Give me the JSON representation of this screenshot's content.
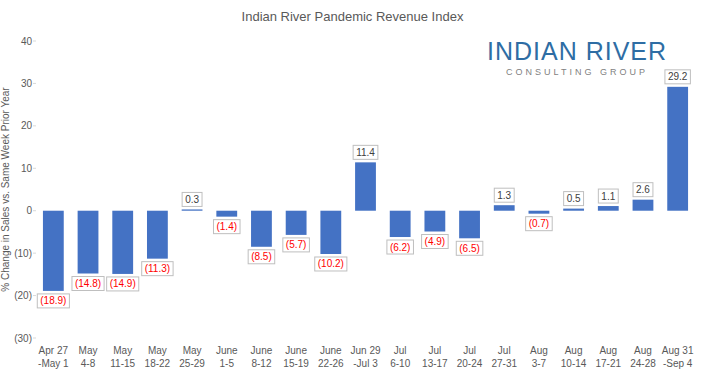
{
  "chart_data": {
    "type": "bar",
    "title": "Indian River Pandemic Revenue Index",
    "y_label": "% Change in Sales vs. Same Week Prior Year",
    "annotations": [
      "INDIAN RIVER",
      "CONSULTING GROUP"
    ],
    "categories": [
      "Apr 27\n-May 1",
      "May\n4-8",
      "May\n11-15",
      "May\n18-22",
      "May\n25-29",
      "June\n1-5",
      "June\n8-12",
      "June\n15-19",
      "June\n22-26",
      "Jun 29\n-Jul 3",
      "Jul\n6-10",
      "Jul\n13-17",
      "Jul\n20-24",
      "Jul\n27-31",
      "Aug\n3-7",
      "Aug\n10-14",
      "Aug\n17-21",
      "Aug\n24-28",
      "Aug 31\n-Sep 4"
    ],
    "values": [
      -18.9,
      -14.8,
      -14.9,
      -11.3,
      0.3,
      -1.4,
      -8.5,
      -5.7,
      -10.2,
      11.4,
      -6.2,
      -4.9,
      -6.5,
      1.3,
      -0.7,
      0.5,
      1.1,
      2.6,
      29.2
    ],
    "value_labels": [
      "(18.9)",
      "(14.8)",
      "(14.9)",
      "(11.3)",
      "0.3",
      "(1.4)",
      "(8.5)",
      "(5.7)",
      "(10.2)",
      "11.4",
      "(6.2)",
      "(4.9)",
      "(6.5)",
      "1.3",
      "(0.7)",
      "0.5",
      "1.1",
      "2.6",
      "29.2"
    ],
    "data_labels": true,
    "color": "#4472c4",
    "ylim": [
      -30,
      40
    ],
    "yticks": [
      {
        "value": -30,
        "label": "(30)"
      },
      {
        "value": -20,
        "label": "(20)"
      },
      {
        "value": -10,
        "label": "(10)"
      },
      0,
      10,
      20,
      30,
      40
    ],
    "grid": false
  }
}
